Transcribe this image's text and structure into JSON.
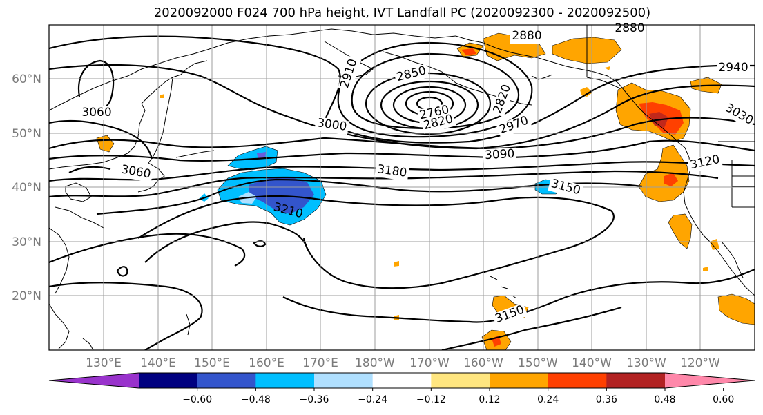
{
  "title": "2020092000 F024 700 hPa height, IVT Landfall PC (2020092300 - 2020092500)",
  "lon_labels": [
    "130°E",
    "140°E",
    "150°E",
    "160°E",
    "170°E",
    "180°W",
    "170°W",
    "160°W",
    "150°W",
    "140°W",
    "130°W",
    "120°W"
  ],
  "lat_labels": [
    "60°N",
    "50°N",
    "40°N",
    "30°N",
    "20°N"
  ],
  "contour_labels": [
    "3060",
    "2910",
    "2850",
    "2880",
    "2880",
    "2940",
    "3030",
    "3120",
    "3060",
    "3000",
    "2760",
    "2820",
    "2820",
    "2970",
    "3090",
    "3180",
    "3150",
    "3210",
    "3150"
  ],
  "colorbar": {
    "ticks": [
      "−0.60",
      "−0.48",
      "−0.36",
      "−0.24",
      "−0.12",
      "0.12",
      "0.24",
      "0.36",
      "0.48",
      "0.60"
    ],
    "colors": [
      "#9933cc",
      "#000080",
      "#3355cc",
      "#00bfff",
      "#b0e0ff",
      "#ffffff",
      "#ffe680",
      "#ffa500",
      "#ff4000",
      "#b22222",
      "#ff88aa"
    ]
  }
}
